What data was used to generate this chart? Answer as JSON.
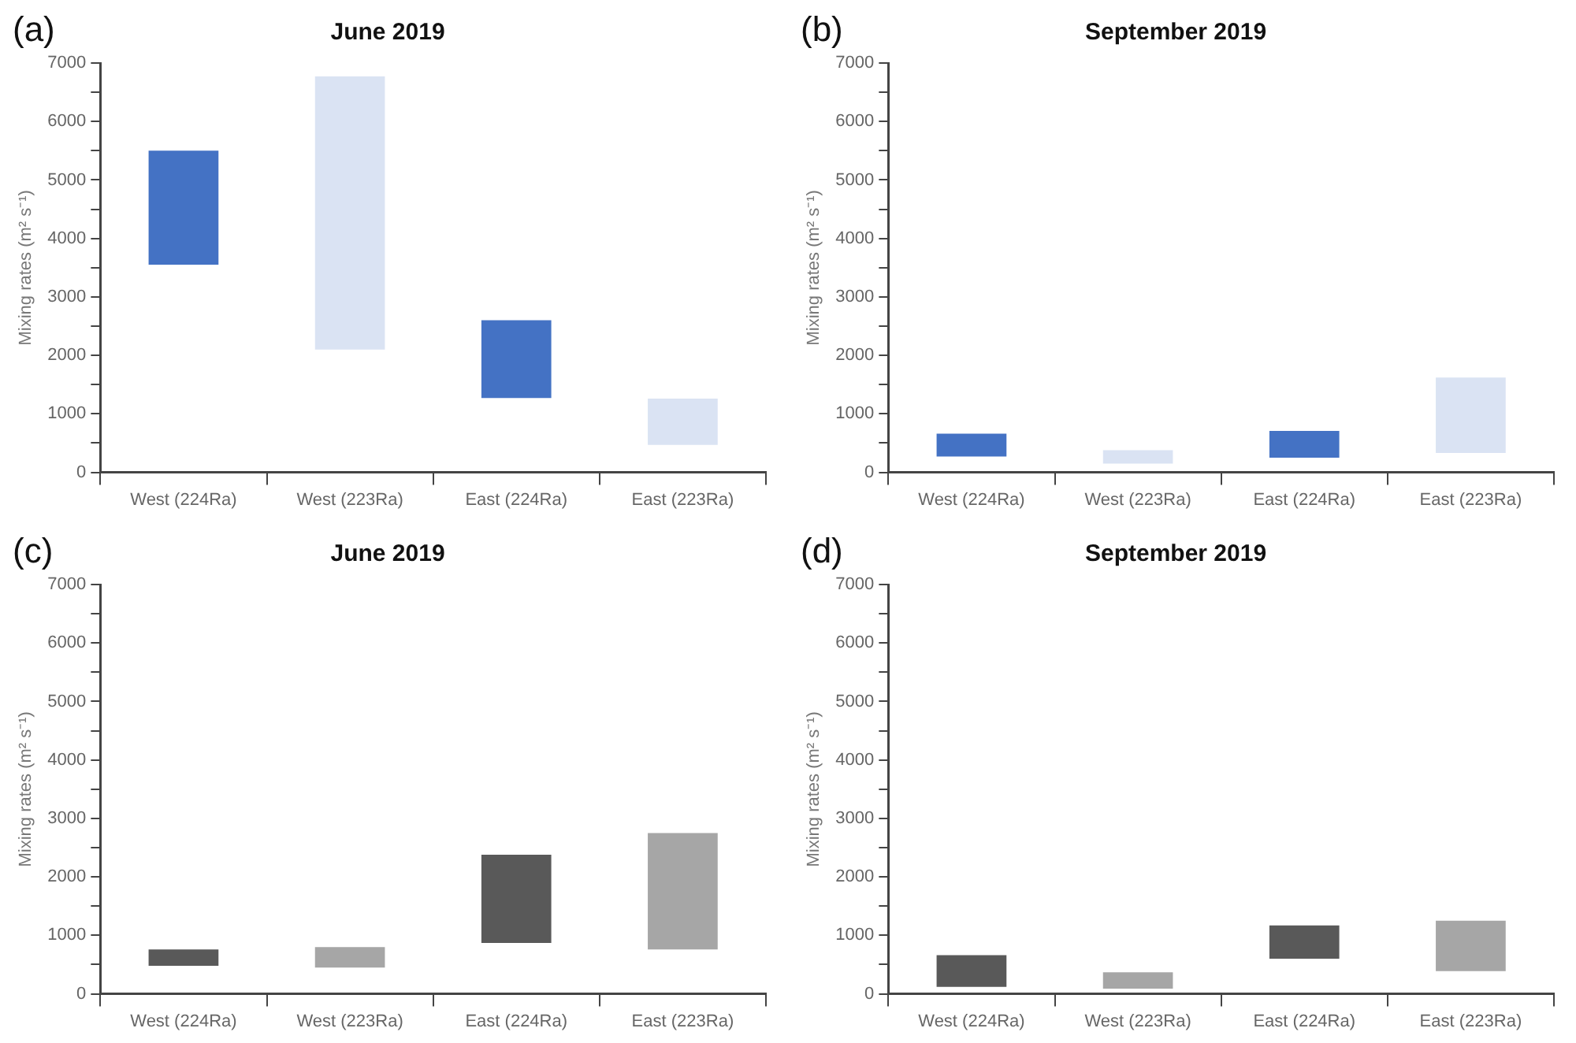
{
  "chart_data": [
    {
      "type": "bar",
      "title": "June 2019",
      "ylabel": "Mixing rates (m² s⁻¹)",
      "annotations": [
        "(a)"
      ],
      "categories": [
        "West (224Ra)",
        "West (223Ra)",
        "East (224Ra)",
        "East (223Ra)"
      ],
      "base": [
        3550,
        2100,
        1270,
        470
      ],
      "values": [
        1950,
        4670,
        1330,
        790
      ],
      "colors": [
        "#4472c4",
        "#dae3f3",
        "#4472c4",
        "#dae3f3"
      ],
      "ylim": [
        0,
        7000
      ],
      "yticks": [
        0,
        {
          "value": 500,
          "label": null
        },
        1000,
        {
          "value": 1500,
          "label": null
        },
        2000,
        {
          "value": 2500,
          "label": null
        },
        3000,
        {
          "value": 3500,
          "label": null
        },
        4000,
        {
          "value": 4500,
          "label": null
        },
        5000,
        {
          "value": 5500,
          "label": null
        },
        6000,
        {
          "value": 6500,
          "label": null
        },
        7000
      ]
    },
    {
      "type": "bar",
      "title": "September 2019",
      "ylabel": "Mixing rates (m² s⁻¹)",
      "annotations": [
        "(b)"
      ],
      "categories": [
        "West (224Ra)",
        "West (223Ra)",
        "East (224Ra)",
        "East (223Ra)"
      ],
      "base": [
        270,
        150,
        250,
        330
      ],
      "values": [
        390,
        230,
        460,
        1290
      ],
      "colors": [
        "#4472c4",
        "#dae3f3",
        "#4472c4",
        "#dae3f3"
      ],
      "ylim": [
        0,
        7000
      ],
      "yticks": [
        0,
        {
          "value": 500,
          "label": null
        },
        1000,
        {
          "value": 1500,
          "label": null
        },
        2000,
        {
          "value": 2500,
          "label": null
        },
        3000,
        {
          "value": 3500,
          "label": null
        },
        4000,
        {
          "value": 4500,
          "label": null
        },
        5000,
        {
          "value": 5500,
          "label": null
        },
        6000,
        {
          "value": 6500,
          "label": null
        },
        7000
      ]
    },
    {
      "type": "bar",
      "title": "June 2019",
      "ylabel": "Mixing rates (m² s⁻¹)",
      "annotations": [
        "(c)"
      ],
      "categories": [
        "West (224Ra)",
        "West (223Ra)",
        "East (224Ra)",
        "East (223Ra)"
      ],
      "base": [
        480,
        450,
        870,
        760
      ],
      "values": [
        280,
        350,
        1510,
        1990
      ],
      "colors": [
        "#595959",
        "#a6a6a6",
        "#595959",
        "#a6a6a6"
      ],
      "ylim": [
        0,
        7000
      ],
      "yticks": [
        0,
        {
          "value": 500,
          "label": null
        },
        1000,
        {
          "value": 1500,
          "label": null
        },
        2000,
        {
          "value": 2500,
          "label": null
        },
        3000,
        {
          "value": 3500,
          "label": null
        },
        4000,
        {
          "value": 4500,
          "label": null
        },
        5000,
        {
          "value": 5500,
          "label": null
        },
        6000,
        {
          "value": 6500,
          "label": null
        },
        7000
      ]
    },
    {
      "type": "bar",
      "title": "September 2019",
      "ylabel": "Mixing rates (m² s⁻¹)",
      "annotations": [
        "(d)"
      ],
      "categories": [
        "West (224Ra)",
        "West (223Ra)",
        "East (224Ra)",
        "East (223Ra)"
      ],
      "base": [
        120,
        90,
        600,
        390
      ],
      "values": [
        540,
        280,
        570,
        860
      ],
      "colors": [
        "#595959",
        "#a6a6a6",
        "#595959",
        "#a6a6a6"
      ],
      "ylim": [
        0,
        7000
      ],
      "yticks": [
        0,
        {
          "value": 500,
          "label": null
        },
        1000,
        {
          "value": 1500,
          "label": null
        },
        2000,
        {
          "value": 2500,
          "label": null
        },
        3000,
        {
          "value": 3500,
          "label": null
        },
        4000,
        {
          "value": 4500,
          "label": null
        },
        5000,
        {
          "value": 5500,
          "label": null
        },
        6000,
        {
          "value": 6500,
          "label": null
        },
        7000
      ]
    }
  ]
}
